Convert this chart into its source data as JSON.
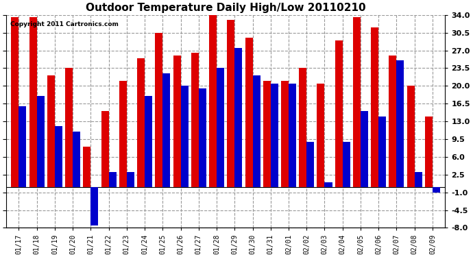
{
  "title": "Outdoor Temperature Daily High/Low 20110210",
  "copyright": "Copyright 2011 Cartronics.com",
  "dates": [
    "01/17",
    "01/18",
    "01/19",
    "01/20",
    "01/21",
    "01/22",
    "01/23",
    "01/24",
    "01/25",
    "01/26",
    "01/27",
    "01/28",
    "01/29",
    "01/30",
    "01/31",
    "02/01",
    "02/02",
    "02/03",
    "02/04",
    "02/05",
    "02/06",
    "02/07",
    "02/08",
    "02/09"
  ],
  "highs": [
    33.5,
    33.5,
    22.0,
    23.5,
    8.0,
    15.0,
    21.0,
    25.5,
    30.5,
    26.0,
    26.5,
    34.5,
    33.0,
    29.5,
    21.0,
    21.0,
    23.5,
    20.5,
    29.0,
    33.5,
    31.5,
    26.0,
    20.0,
    14.0
  ],
  "lows": [
    16.0,
    18.0,
    12.0,
    11.0,
    -7.5,
    3.0,
    3.0,
    18.0,
    22.5,
    20.0,
    19.5,
    23.5,
    27.5,
    22.0,
    20.5,
    20.5,
    9.0,
    1.0,
    9.0,
    15.0,
    14.0,
    25.0,
    3.0,
    -1.0
  ],
  "high_color": "#dd0000",
  "low_color": "#0000cc",
  "bg_color": "#ffffff",
  "plot_bg_color": "#ffffff",
  "grid_color": "#999999",
  "ylim": [
    -8.0,
    34.0
  ],
  "yticks": [
    -8.0,
    -4.5,
    -1.0,
    2.5,
    6.0,
    9.5,
    13.0,
    16.5,
    20.0,
    23.5,
    27.0,
    30.5,
    34.0
  ],
  "bar_width": 0.42,
  "figwidth": 6.9,
  "figheight": 3.75,
  "dpi": 100
}
